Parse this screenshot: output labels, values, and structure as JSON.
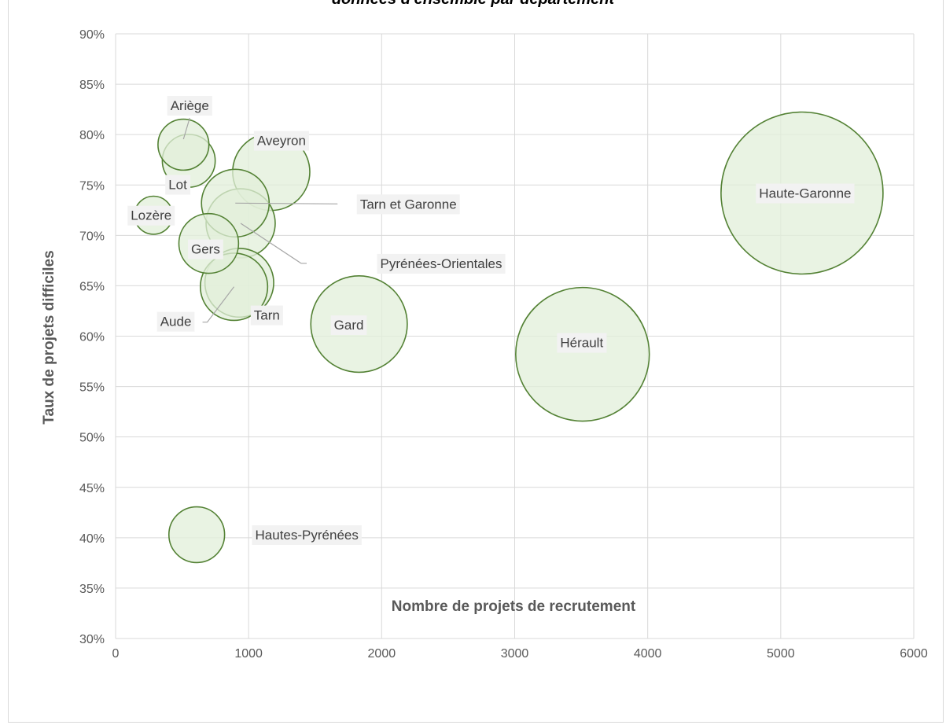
{
  "chart_data": {
    "type": "bubble",
    "title": "données d'ensemble par département",
    "xlabel": "Nombre de projets de recrutement",
    "ylabel": "Taux de projets difficiles",
    "xlim": [
      0,
      6000
    ],
    "ylim": [
      0.3,
      0.9
    ],
    "x_ticks": [
      "0",
      "1000",
      "2000",
      "3000",
      "4000",
      "5000",
      "6000"
    ],
    "y_ticks": [
      "30%",
      "35%",
      "40%",
      "45%",
      "50%",
      "55%",
      "60%",
      "65%",
      "70%",
      "75%",
      "80%",
      "85%",
      "90%"
    ],
    "grid": true,
    "colors": {
      "bubble_fill": "#e2efda",
      "bubble_stroke": "#548235",
      "grid": "#d9d9d9"
    },
    "points": [
      {
        "name": "Ariège",
        "x": 510,
        "y": 0.79,
        "size": 510
      },
      {
        "name": "Lot",
        "x": 550,
        "y": 0.774,
        "size": 550
      },
      {
        "name": "Aveyron",
        "x": 1170,
        "y": 0.763,
        "size": 1170
      },
      {
        "name": "Lozère",
        "x": 285,
        "y": 0.72,
        "size": 285
      },
      {
        "name": "Tarn et Garonne",
        "x": 900,
        "y": 0.732,
        "size": 900
      },
      {
        "name": "Pyrénées-Orientales",
        "x": 940,
        "y": 0.712,
        "size": 940
      },
      {
        "name": "Gers",
        "x": 700,
        "y": 0.692,
        "size": 700
      },
      {
        "name": "Tarn",
        "x": 930,
        "y": 0.653,
        "size": 930
      },
      {
        "name": "Aude",
        "x": 890,
        "y": 0.649,
        "size": 890
      },
      {
        "name": "Gard",
        "x": 1830,
        "y": 0.612,
        "size": 1830
      },
      {
        "name": "Hérault",
        "x": 3510,
        "y": 0.582,
        "size": 3510
      },
      {
        "name": "Haute-Garonne",
        "x": 5160,
        "y": 0.742,
        "size": 5160
      },
      {
        "name": "Hautes-Pyrénées",
        "x": 610,
        "y": 0.403,
        "size": 610
      }
    ]
  }
}
